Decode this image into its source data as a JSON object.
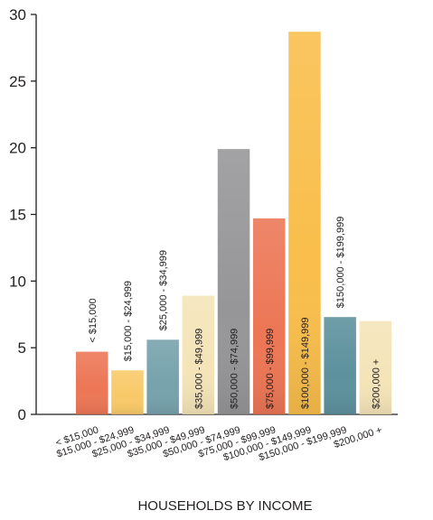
{
  "chart_data": {
    "type": "bar",
    "categories": [
      "< $15,000",
      "$15,000 - $24,999",
      "$25,000 - $34,999",
      "$35,000 - $49,999",
      "$50,000 - $74,999",
      "$75,000 - $99,999",
      "$100,000 - $149,999",
      "$150,000 - $199,999",
      "$200,000 +"
    ],
    "values": [
      4.7,
      3.3,
      5.6,
      8.9,
      19.9,
      14.7,
      28.7,
      7.3,
      7.0
    ],
    "xlabel": "HOUSEHOLDS BY INCOME",
    "ylabel": "",
    "ylim": [
      0,
      30
    ],
    "yticks": [
      "0",
      "5",
      "10",
      "15",
      "20",
      "25",
      "30"
    ],
    "grid": false,
    "legend": "none",
    "bar_colors": [
      "#ea6a47",
      "#f7c45a",
      "#6a9aa5",
      "#f3e2b2",
      "#8d8d8f",
      "#ea6a47",
      "#f8b93c",
      "#4e8895",
      "#f3e2b2"
    ],
    "bar_label_placement": [
      "above",
      "above",
      "above",
      "inside",
      "inside",
      "inside",
      "inside",
      "above",
      "inside"
    ]
  }
}
